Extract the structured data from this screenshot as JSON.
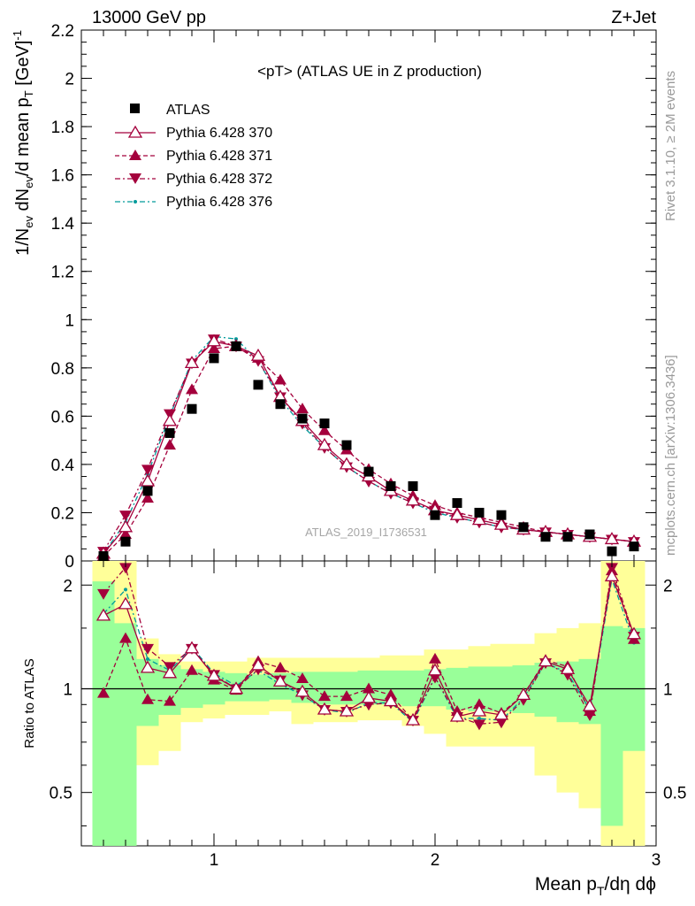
{
  "header": {
    "left": "13000 GeV pp",
    "right": "Z+Jet"
  },
  "side_labels": {
    "rivet": "Rivet 3.1.10, ≥ 2M events",
    "mcplots": "mcplots.cern.ch [arXiv:1306.3436]"
  },
  "colors": {
    "data": "#000000",
    "mc_red": "#a4003c",
    "mc_teal": "#009b9b",
    "band_green": "#99ff99",
    "band_yellow": "#ffff99"
  },
  "chart_data": [
    {
      "type": "scatter",
      "title": "<pT> (ATLAS UE in Z production)",
      "watermark": "ATLAS_2019_I1736531",
      "ylabel": "1/N_ev dN_ev/d mean p_T [GeV]^-1",
      "ylim": [
        0,
        2.2
      ],
      "xlim": [
        0.4,
        3.0
      ],
      "y_ticks": [
        0,
        0.2,
        0.4,
        0.6,
        0.8,
        1,
        1.2,
        1.4,
        1.6,
        1.8,
        2,
        2.2
      ],
      "y_tick_labels": [
        "0",
        "0.2",
        "0.4",
        "0.6",
        "0.8",
        "1",
        "1.2",
        "1.4",
        "1.6",
        "1.8",
        "2",
        "2.2"
      ],
      "legend_position": "top-left",
      "x": [
        0.5,
        0.6,
        0.7,
        0.8,
        0.9,
        1.0,
        1.1,
        1.2,
        1.3,
        1.4,
        1.5,
        1.6,
        1.7,
        1.8,
        1.9,
        2.0,
        2.1,
        2.2,
        2.3,
        2.4,
        2.5,
        2.6,
        2.7,
        2.8,
        2.9
      ],
      "series": [
        {
          "name": "ATLAS",
          "marker": "square",
          "values": [
            0.02,
            0.08,
            0.29,
            0.53,
            0.63,
            0.84,
            0.89,
            0.73,
            0.65,
            0.59,
            0.57,
            0.48,
            0.37,
            0.31,
            0.31,
            0.19,
            0.24,
            0.2,
            0.19,
            0.14,
            0.1,
            0.1,
            0.11,
            0.04,
            0.06
          ]
        },
        {
          "name": "Pythia 6.428 370",
          "marker": "triangle-up-open",
          "line": "solid",
          "values": [
            0.03,
            0.14,
            0.33,
            0.58,
            0.82,
            0.91,
            0.89,
            0.85,
            0.68,
            0.58,
            0.48,
            0.4,
            0.35,
            0.29,
            0.25,
            0.21,
            0.19,
            0.17,
            0.15,
            0.13,
            0.12,
            0.11,
            0.1,
            0.09,
            0.08
          ]
        },
        {
          "name": "Pythia 6.428 371",
          "marker": "triangle-up-filled",
          "line": "dashed",
          "values": [
            0.02,
            0.11,
            0.26,
            0.48,
            0.71,
            0.88,
            0.89,
            0.84,
            0.75,
            0.63,
            0.54,
            0.46,
            0.38,
            0.32,
            0.27,
            0.23,
            0.2,
            0.18,
            0.16,
            0.14,
            0.12,
            0.11,
            0.1,
            0.09,
            0.08
          ]
        },
        {
          "name": "Pythia 6.428 372",
          "marker": "triangle-down-filled",
          "line": "dashdot",
          "values": [
            0.04,
            0.19,
            0.38,
            0.61,
            0.82,
            0.92,
            0.89,
            0.83,
            0.68,
            0.57,
            0.47,
            0.39,
            0.33,
            0.28,
            0.24,
            0.21,
            0.18,
            0.16,
            0.14,
            0.13,
            0.12,
            0.11,
            0.1,
            0.09,
            0.08
          ]
        },
        {
          "name": "Pythia 6.428 376",
          "marker": "dot",
          "line": "dashdot",
          "values": [
            0.03,
            0.16,
            0.36,
            0.6,
            0.83,
            0.93,
            0.92,
            0.83,
            0.67,
            0.56,
            0.47,
            0.39,
            0.33,
            0.28,
            0.24,
            0.2,
            0.18,
            0.16,
            0.14,
            0.13,
            0.12,
            0.11,
            0.1,
            0.09,
            0.08
          ]
        }
      ]
    },
    {
      "type": "scatter",
      "ylabel": "Ratio to ATLAS",
      "xlabel": "Mean p_T/dη dϕ",
      "ylim": [
        0.35,
        2.35
      ],
      "log_y": true,
      "xlim": [
        0.4,
        3.0
      ],
      "x_ticks": [
        1,
        2,
        3
      ],
      "x_tick_labels": [
        "1",
        "2",
        "3"
      ],
      "y_ticks": [
        0.5,
        1,
        2
      ],
      "y_tick_labels": [
        "0.5",
        "1",
        "2"
      ],
      "reference_line": 1,
      "x": [
        0.5,
        0.6,
        0.7,
        0.8,
        0.9,
        1.0,
        1.1,
        1.2,
        1.3,
        1.4,
        1.5,
        1.6,
        1.7,
        1.8,
        1.9,
        2.0,
        2.1,
        2.2,
        2.3,
        2.4,
        2.5,
        2.6,
        2.7,
        2.8,
        2.9
      ],
      "bands": {
        "green_lo": [
          0.1,
          0.1,
          0.78,
          0.84,
          0.88,
          0.9,
          0.92,
          0.92,
          0.93,
          0.91,
          0.9,
          0.9,
          0.9,
          0.9,
          0.89,
          0.89,
          0.87,
          0.86,
          0.86,
          0.85,
          0.83,
          0.8,
          0.79,
          0.4,
          0.66
        ],
        "green_hi": [
          2.05,
          1.55,
          1.22,
          1.17,
          1.14,
          1.12,
          1.11,
          1.1,
          1.11,
          1.12,
          1.12,
          1.12,
          1.13,
          1.13,
          1.13,
          1.14,
          1.15,
          1.16,
          1.16,
          1.17,
          1.19,
          1.2,
          1.22,
          1.52,
          1.5
        ],
        "yellow_lo": [
          0.1,
          0.1,
          0.6,
          0.66,
          0.8,
          0.82,
          0.84,
          0.84,
          0.86,
          0.79,
          0.8,
          0.8,
          0.81,
          0.81,
          0.78,
          0.74,
          0.68,
          0.68,
          0.68,
          0.68,
          0.56,
          0.5,
          0.45,
          0.3,
          0.35
        ],
        "yellow_hi": [
          2.35,
          2.35,
          1.4,
          1.26,
          1.2,
          1.2,
          1.2,
          1.23,
          1.23,
          1.23,
          1.23,
          1.23,
          1.23,
          1.25,
          1.25,
          1.3,
          1.3,
          1.33,
          1.35,
          1.35,
          1.45,
          1.5,
          1.55,
          2.35,
          2.35
        ]
      },
      "series": [
        {
          "name": "Pythia 6.428 370",
          "values": [
            1.63,
            1.76,
            1.15,
            1.11,
            1.31,
            1.09,
            1.0,
            1.17,
            1.05,
            0.98,
            0.87,
            0.86,
            0.94,
            0.92,
            0.81,
            1.13,
            0.83,
            0.86,
            0.84,
            0.96,
            1.2,
            1.14,
            0.89,
            2.12,
            1.44
          ]
        },
        {
          "name": "Pythia 6.428 371",
          "values": [
            0.97,
            1.4,
            0.93,
            0.92,
            1.13,
            1.06,
            0.99,
            1.2,
            1.15,
            1.07,
            0.95,
            0.95,
            1.0,
            0.96,
            0.81,
            1.22,
            0.86,
            0.9,
            0.85,
            0.96,
            1.21,
            1.16,
            0.86,
            2.2,
            1.39
          ]
        },
        {
          "name": "Pythia 6.428 372",
          "values": [
            1.89,
            2.25,
            1.31,
            1.16,
            1.31,
            1.1,
            1.0,
            1.14,
            1.06,
            0.96,
            0.87,
            0.86,
            0.9,
            0.91,
            0.81,
            1.08,
            0.83,
            0.79,
            0.8,
            0.93,
            1.19,
            1.1,
            0.84,
            2.25,
            1.42
          ]
        },
        {
          "name": "Pythia 6.428 376",
          "values": [
            1.65,
            1.94,
            1.22,
            1.13,
            1.32,
            1.11,
            1.02,
            1.13,
            1.03,
            0.96,
            0.87,
            0.85,
            0.91,
            0.91,
            0.8,
            1.08,
            0.82,
            0.82,
            0.81,
            0.94,
            1.19,
            1.11,
            0.87,
            2.08,
            1.36
          ]
        }
      ]
    }
  ]
}
